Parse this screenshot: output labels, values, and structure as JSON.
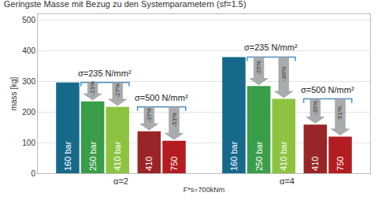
{
  "chart_data": {
    "type": "bar",
    "title": "Geringste Masse mit Bezug zu den Systemparametern (sf=1.5)",
    "x_label": "F*s=700kNm",
    "y_label": "mass [kg]",
    "categories": [
      "α=2",
      "α=4"
    ],
    "series": [
      {
        "name": "160 bar",
        "color": "#17698c",
        "values": [
          297,
          380
        ]
      },
      {
        "name": "250 bar",
        "color": "#3a9d48",
        "values": [
          235,
          285
        ]
      },
      {
        "name": "410 bar",
        "color": "#8dc341",
        "values": [
          217,
          243
        ]
      },
      {
        "name": "410",
        "color": "#9a2526",
        "values": [
          137,
          159
        ]
      },
      {
        "name": "750",
        "color": "#b31d22",
        "values": [
          106,
          120
        ]
      }
    ],
    "ylim": [
      0,
      520
    ],
    "yticks": [
      0,
      100,
      200,
      300,
      400,
      500
    ],
    "grid": true,
    "comparisons": [
      {
        "category": "α=2",
        "label": "σ=235 N/mm²",
        "reference": "160 bar",
        "changes": [
          {
            "series": "250 bar",
            "label": "-21%"
          },
          {
            "series": "410 bar",
            "label": "-27%"
          }
        ]
      },
      {
        "category": "α=2",
        "label": "σ=500 N/mm²",
        "reference": "410 bar",
        "changes": [
          {
            "series": "410",
            "label": "-37%"
          },
          {
            "series": "750",
            "label": "-51%"
          }
        ]
      },
      {
        "category": "α=4",
        "label": "σ=235 N/mm²",
        "reference": "160 bar",
        "changes": [
          {
            "series": "250 bar",
            "label": "-25%"
          },
          {
            "series": "410 bar",
            "label": "-36%"
          }
        ]
      },
      {
        "category": "α=4",
        "label": "σ=500 N/mm²",
        "reference": "410 bar",
        "changes": [
          {
            "series": "410",
            "label": "-35%"
          },
          {
            "series": "750",
            "label": "-51%"
          }
        ]
      }
    ]
  }
}
